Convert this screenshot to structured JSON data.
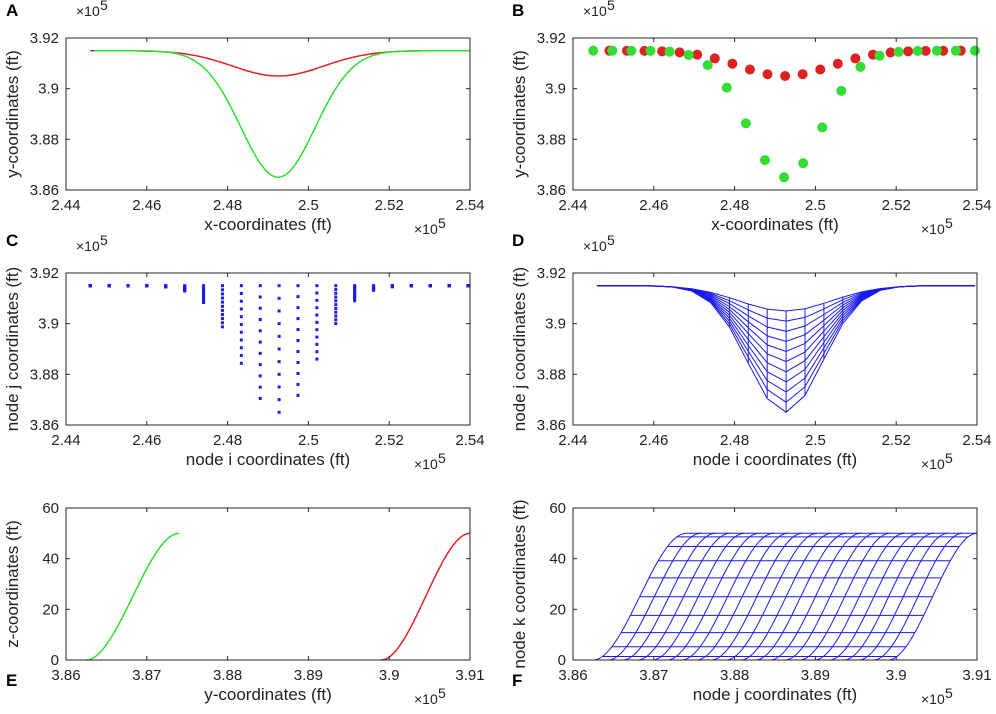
{
  "colors": {
    "red": "#dd2222",
    "green": "#33dd33",
    "blue": "#1a1aee",
    "axis": "#262626"
  },
  "chart_data": [
    {
      "panel": "A",
      "type": "line",
      "xlabel": "x-coordinates (ft)",
      "ylabel": "y-coordinates (ft)",
      "x_multiplier": "×10",
      "y_multiplier": "×10",
      "exponent": "5",
      "xlim": [
        2.44,
        2.54
      ],
      "ylim": [
        3.86,
        3.92
      ],
      "xticks": [
        "2.44",
        "2.46",
        "2.48",
        "2.5",
        "2.52",
        "2.54"
      ],
      "yticks": [
        "3.86",
        "3.88",
        "3.9",
        "3.92"
      ],
      "series": [
        {
          "name": "red",
          "color": "red",
          "x0": 2.446,
          "x1": 2.536,
          "xm": 2.4925,
          "ye": 3.915,
          "ym": 3.905,
          "w": 0.016
        },
        {
          "name": "green",
          "color": "green",
          "x0": 2.447,
          "x1": 2.54,
          "xm": 2.4925,
          "ye": 3.915,
          "ym": 3.865,
          "w": 0.013
        }
      ]
    },
    {
      "panel": "B",
      "type": "scatter",
      "xlabel": "x-coordinates (ft)",
      "ylabel": "y-coordinates (ft)",
      "x_multiplier": "×10",
      "y_multiplier": "×10",
      "exponent": "5",
      "xlim": [
        2.44,
        2.54
      ],
      "ylim": [
        3.86,
        3.92
      ],
      "xticks": [
        "2.44",
        "2.46",
        "2.48",
        "2.5",
        "2.52",
        "2.54"
      ],
      "yticks": [
        "3.86",
        "3.88",
        "3.9",
        "3.92"
      ],
      "series": [
        {
          "name": "red",
          "color": "red",
          "x0": 2.449,
          "x1": 2.536,
          "n": 21,
          "xm": 2.4925,
          "ye": 3.915,
          "ym": 3.905,
          "w": 0.016
        },
        {
          "name": "green",
          "color": "green",
          "x0": 2.445,
          "x1": 2.5395,
          "n": 21,
          "xm": 2.4925,
          "ye": 3.915,
          "ym": 3.865,
          "w": 0.013
        }
      ]
    },
    {
      "panel": "C",
      "type": "scatter",
      "xlabel": "node i coordinates (ft)",
      "ylabel": "node j coordinates (ft)",
      "x_multiplier": "×10",
      "y_multiplier": "×10",
      "exponent": "5",
      "xlim": [
        2.44,
        2.54
      ],
      "ylim": [
        3.86,
        3.92
      ],
      "xticks": [
        "2.44",
        "2.46",
        "2.48",
        "2.5",
        "2.52",
        "2.54"
      ],
      "yticks": [
        "3.86",
        "3.88",
        "3.9",
        "3.92"
      ],
      "grid_top": {
        "x0": 2.446,
        "x1": 2.5395,
        "y": 3.915
      },
      "grid_bottom": {
        "x0": 2.446,
        "x1": 2.5395,
        "xm": 2.4925,
        "ye": 3.915,
        "ym": 3.865,
        "w": 0.013
      },
      "columns": 21,
      "rows": 11,
      "color": "blue"
    },
    {
      "panel": "D",
      "type": "line",
      "xlabel": "node i coordinates (ft)",
      "ylabel": "node j coordinates (ft)",
      "x_multiplier": "×10",
      "y_multiplier": "×10",
      "exponent": "5",
      "xlim": [
        2.44,
        2.54
      ],
      "ylim": [
        3.86,
        3.92
      ],
      "xticks": [
        "2.44",
        "2.46",
        "2.48",
        "2.5",
        "2.52",
        "2.54"
      ],
      "yticks": [
        "3.86",
        "3.88",
        "3.9",
        "3.92"
      ],
      "grid_top": {
        "x0": 2.446,
        "x1": 2.5395,
        "xm": 2.4925,
        "ye": 3.915,
        "ym": 3.905,
        "w": 0.016
      },
      "grid_bottom": {
        "x0": 2.446,
        "x1": 2.5395,
        "xm": 2.4925,
        "ye": 3.915,
        "ym": 3.865,
        "w": 0.013
      },
      "columns": 21,
      "rows": 11,
      "color": "blue"
    },
    {
      "panel": "E",
      "type": "line",
      "xlabel": "y-coordinates (ft)",
      "ylabel": "z-coordinates (ft)",
      "x_multiplier": "×10",
      "y_multiplier": "",
      "exponent": "5",
      "xlim": [
        3.86,
        3.91
      ],
      "ylim": [
        0,
        60
      ],
      "xticks": [
        "3.86",
        "3.87",
        "3.88",
        "3.89",
        "3.9",
        "3.91"
      ],
      "yticks": [
        "0",
        "20",
        "40",
        "60"
      ],
      "series": [
        {
          "name": "green",
          "color": "green",
          "xs": 3.8625,
          "xe": 3.874,
          "zmax": 50
        },
        {
          "name": "red",
          "color": "red",
          "xs": 3.899,
          "xe": 3.91,
          "zmax": 50
        }
      ]
    },
    {
      "panel": "F",
      "type": "line",
      "xlabel": "node j coordinates (ft)",
      "ylabel": "node k coordinates (ft)",
      "x_multiplier": "×10",
      "y_multiplier": "",
      "exponent": "5",
      "xlim": [
        3.86,
        3.91
      ],
      "ylim": [
        0,
        60
      ],
      "xticks": [
        "3.86",
        "3.87",
        "3.88",
        "3.89",
        "3.9",
        "3.91"
      ],
      "yticks": [
        "0",
        "20",
        "40",
        "60"
      ],
      "start_range": [
        3.8625,
        3.899
      ],
      "end_range": [
        3.874,
        3.91
      ],
      "zmax": 50,
      "columns": 21,
      "rows": 11,
      "color": "blue"
    }
  ]
}
